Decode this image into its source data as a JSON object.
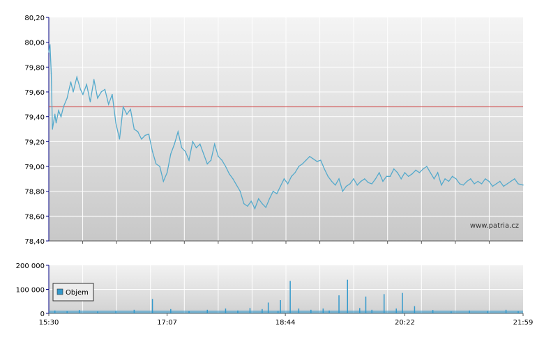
{
  "chart_data": [
    {
      "type": "line",
      "title": "",
      "watermark": "www.patria.cz",
      "y_ticks": [
        "80,20",
        "80,00",
        "79,80",
        "79,60",
        "79,40",
        "79,20",
        "79,00",
        "78,80",
        "78,60",
        "78,40"
      ],
      "ylim": [
        78.4,
        80.2
      ],
      "x_ticks": [
        "15:30",
        "17:07",
        "18:44",
        "20:22",
        "21:59"
      ],
      "xlim": [
        "15:30",
        "21:59"
      ],
      "reference_line": 79.48,
      "colors": {
        "line": "#55aacc",
        "reference": "#cc3333",
        "grid": "#ffffff"
      },
      "series": [
        {
          "x": [
            "15:30",
            "15:31",
            "15:32",
            "15:33",
            "15:35",
            "15:36",
            "15:38",
            "15:40",
            "15:42",
            "15:45",
            "15:48",
            "15:50",
            "15:53",
            "15:56",
            "15:58",
            "16:01",
            "16:04",
            "16:07",
            "16:10",
            "16:13",
            "16:16",
            "16:19",
            "16:22",
            "16:25",
            "16:28",
            "16:31",
            "16:34",
            "16:37",
            "16:40",
            "16:43",
            "16:46",
            "16:49",
            "16:52",
            "16:55",
            "16:58",
            "17:01",
            "17:04",
            "17:07",
            "17:10",
            "17:13",
            "17:16",
            "17:19",
            "17:22",
            "17:25",
            "17:28",
            "17:31",
            "17:34",
            "17:37",
            "17:40",
            "17:43",
            "17:46",
            "17:49",
            "17:52",
            "17:55",
            "17:58",
            "18:01",
            "18:04",
            "18:07",
            "18:10",
            "18:13",
            "18:16",
            "18:19",
            "18:22",
            "18:25",
            "18:28",
            "18:31",
            "18:34",
            "18:37",
            "18:40",
            "18:43",
            "18:46",
            "18:49",
            "18:52",
            "18:55",
            "18:58",
            "19:01",
            "19:04",
            "19:07",
            "19:10",
            "19:13",
            "19:16",
            "19:19",
            "19:22",
            "19:25",
            "19:28",
            "19:31",
            "19:34",
            "19:37",
            "19:40",
            "19:43",
            "19:46",
            "19:49",
            "19:52",
            "19:55",
            "19:58",
            "20:01",
            "20:04",
            "20:07",
            "20:10",
            "20:13",
            "20:16",
            "20:19",
            "20:22",
            "20:25",
            "20:28",
            "20:31",
            "20:34",
            "20:37",
            "20:40",
            "20:43",
            "20:46",
            "20:49",
            "20:52",
            "20:55",
            "20:58",
            "21:01",
            "21:04",
            "21:07",
            "21:10",
            "21:13",
            "21:16",
            "21:19",
            "21:22",
            "21:25",
            "21:28",
            "21:31",
            "21:34",
            "21:37",
            "21:40",
            "21:43",
            "21:46",
            "21:49",
            "21:52",
            "21:55",
            "21:59"
          ],
          "values": [
            79.92,
            79.98,
            79.75,
            79.3,
            79.42,
            79.35,
            79.45,
            79.4,
            79.48,
            79.55,
            79.68,
            79.6,
            79.72,
            79.62,
            79.58,
            79.66,
            79.52,
            79.7,
            79.55,
            79.6,
            79.62,
            79.5,
            79.58,
            79.35,
            79.22,
            79.48,
            79.42,
            79.46,
            79.3,
            79.28,
            79.22,
            79.25,
            79.26,
            79.12,
            79.02,
            79.0,
            78.88,
            78.95,
            79.1,
            79.18,
            79.28,
            79.15,
            79.12,
            79.05,
            79.2,
            79.15,
            79.18,
            79.1,
            79.02,
            79.05,
            79.18,
            79.08,
            79.05,
            79.0,
            78.94,
            78.9,
            78.85,
            78.8,
            78.7,
            78.68,
            78.72,
            78.66,
            78.74,
            78.7,
            78.67,
            78.74,
            78.8,
            78.78,
            78.84,
            78.9,
            78.86,
            78.92,
            78.95,
            79.0,
            79.02,
            79.05,
            79.08,
            79.06,
            79.04,
            79.05,
            78.98,
            78.92,
            78.88,
            78.85,
            78.9,
            78.8,
            78.84,
            78.86,
            78.9,
            78.85,
            78.88,
            78.9,
            78.87,
            78.86,
            78.9,
            78.95,
            78.88,
            78.92,
            78.92,
            78.98,
            78.95,
            78.9,
            78.95,
            78.92,
            78.94,
            78.97,
            78.95,
            78.98,
            79.0,
            78.95,
            78.9,
            78.95,
            78.85,
            78.9,
            78.88,
            78.92,
            78.9,
            78.86,
            78.85,
            78.88,
            78.9,
            78.86,
            78.88,
            78.86,
            78.9,
            78.88,
            78.84,
            78.86,
            78.88,
            78.84,
            78.86,
            78.88,
            78.9,
            78.86,
            78.85
          ]
        }
      ]
    },
    {
      "type": "bar",
      "legend": "Objem",
      "y_ticks": [
        "200 000",
        "100 000",
        "0"
      ],
      "ylim": [
        0,
        200000
      ],
      "x_ticks": [
        "15:30",
        "17:07",
        "18:44",
        "20:22",
        "21:59"
      ],
      "colors": {
        "bar": "#3399cc",
        "legend_swatch": "#3399cc"
      },
      "series": [
        {
          "x": [
            "15:35",
            "15:45",
            "15:55",
            "16:10",
            "16:25",
            "16:40",
            "16:55",
            "17:10",
            "17:25",
            "17:40",
            "17:55",
            "18:05",
            "18:15",
            "18:25",
            "18:30",
            "18:38",
            "18:40",
            "18:48",
            "18:55",
            "19:05",
            "19:15",
            "19:20",
            "19:28",
            "19:35",
            "19:45",
            "19:50",
            "19:55",
            "20:05",
            "20:15",
            "20:20",
            "20:30",
            "20:45",
            "21:00",
            "21:15",
            "21:30",
            "21:45",
            "21:55"
          ],
          "values": [
            12000,
            9000,
            14000,
            8000,
            10000,
            15000,
            60000,
            18000,
            9000,
            15000,
            20000,
            12000,
            22000,
            18000,
            45000,
            10000,
            55000,
            135000,
            20000,
            15000,
            20000,
            12000,
            75000,
            140000,
            22000,
            70000,
            15000,
            80000,
            20000,
            85000,
            30000,
            14000,
            8000,
            12000,
            10000,
            15000,
            9000
          ]
        }
      ]
    }
  ]
}
